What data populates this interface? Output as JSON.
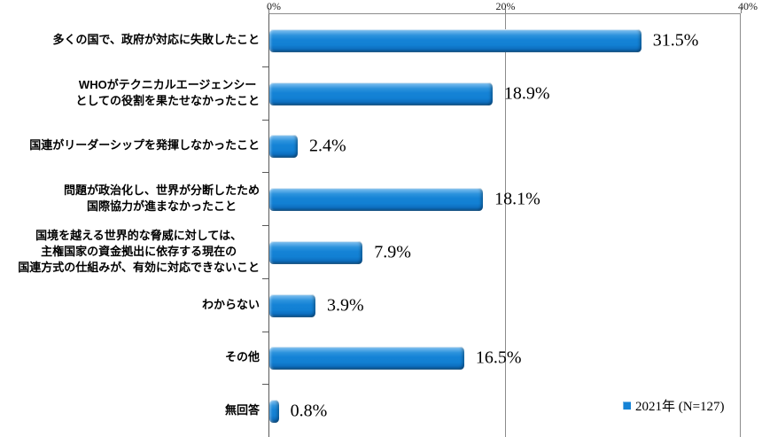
{
  "chart_data": {
    "type": "bar",
    "orientation": "horizontal",
    "title": "",
    "xlabel": "",
    "ylabel": "",
    "xlim": [
      0,
      40
    ],
    "x_tick_labels": [
      "0%",
      "20%",
      "40%"
    ],
    "x_tick_values": [
      0,
      20,
      40
    ],
    "grid": "vertical gridlines at 20% and 40%, x-axis on top",
    "legend_position": "bottom-right",
    "legend": {
      "label": "2021年 (N=127)",
      "marker": "square-icon"
    },
    "series_name": "2021年 (N=127)",
    "categories": [
      "多くの国で、政府が対応に失敗したこと",
      "WHOがテクニカルエージェンシーとしての役割を果たせなかったこと",
      "国連がリーダーシップを発揮しなかったこと",
      "問題が政治化し、世界が分断したため国際協力が進まなかったこと",
      "国境を越える世界的な脅威に対しては、主権国家の資金拠出に依存する現在の国連方式の仕組みが、有効に対応できないこと",
      "わからない",
      "その他",
      "無回答"
    ],
    "category_lines": [
      [
        "多くの国で、政府が対応に失敗したこと"
      ],
      [
        "WHOがテクニカルエージェンシー",
        "としての役割を果たせなかったこと"
      ],
      [
        "国連がリーダーシップを発揮しなかったこと"
      ],
      [
        "問題が政治化し、世界が分断したため",
        "国際協力が進まなかったこと"
      ],
      [
        "国境を越える世界的な脅威に対しては、",
        "主権国家の資金拠出に依存する現在の",
        "国連方式の仕組みが、有効に対応できないこと"
      ],
      [
        "わからない"
      ],
      [
        "その他"
      ],
      [
        "無回答"
      ]
    ],
    "values": [
      31.5,
      18.9,
      2.4,
      18.1,
      7.9,
      3.9,
      16.5,
      0.8
    ],
    "value_labels": [
      "31.5%",
      "18.9%",
      "2.4%",
      "18.1%",
      "7.9%",
      "3.9%",
      "16.5%",
      "0.8%"
    ],
    "colors": {
      "bar": "#1583d6",
      "bar_highlight": "#6fb7ec",
      "bar_shadow": "#0a5c9e",
      "axis": "#595959",
      "gridline": "#8c8c8c"
    }
  }
}
